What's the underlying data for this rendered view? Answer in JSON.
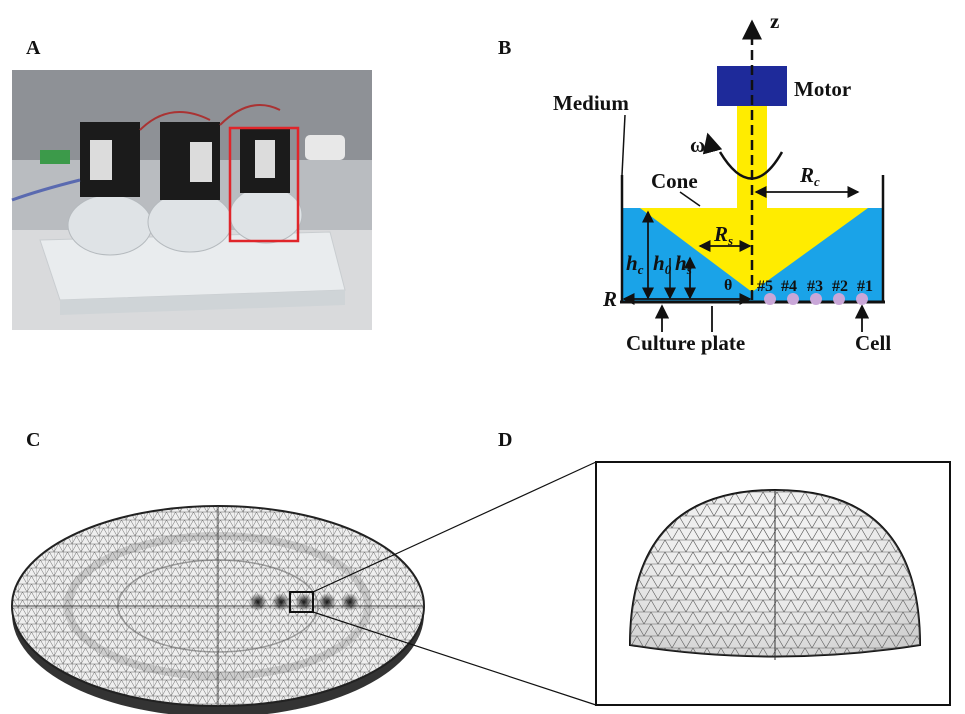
{
  "panels": {
    "a": "A",
    "b": "B",
    "c": "C",
    "d": "D"
  },
  "diagram": {
    "axis": "z",
    "motor": "Motor",
    "medium": "Medium",
    "omega": "ω",
    "cone": "Cone",
    "rc": {
      "main": "R",
      "sub": "c"
    },
    "rs": {
      "main": "R",
      "sub": "s"
    },
    "hc": {
      "main": "h",
      "sub": "c"
    },
    "h0": {
      "main": "h",
      "sub": "0"
    },
    "hs": {
      "main": "h",
      "sub": "s"
    },
    "theta": "θ",
    "radius": "R",
    "wells": [
      "#5",
      "#4",
      "#3",
      "#2",
      "#1"
    ],
    "plate": "Culture plate",
    "cell": "Cell"
  }
}
